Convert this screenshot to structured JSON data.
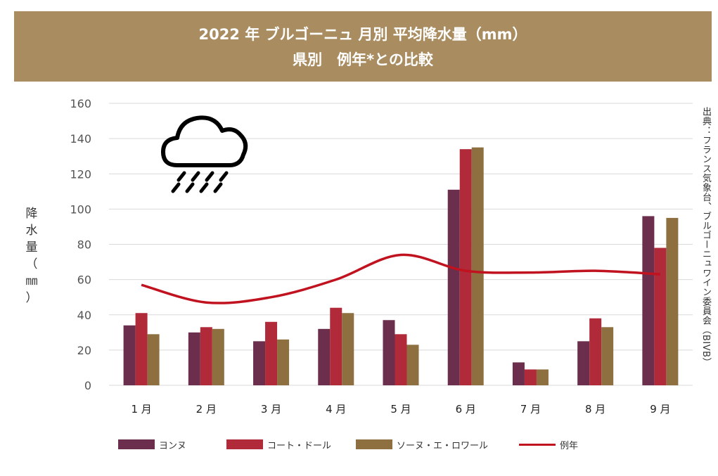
{
  "title": {
    "line1": "2022 年 ブルゴーニュ 月別 平均降水量（mm）",
    "line2": "県別　例年*との比較"
  },
  "ylabel_chars": [
    "降",
    "水",
    "量",
    "（",
    "㎜",
    "）"
  ],
  "source": "出典：フランス気象台、ブルゴーニュワイン委員会（BIVB）",
  "icon": "rain-cloud-icon",
  "colors": {
    "banner": "#a98c5f",
    "yonne": "#6b2e4c",
    "cote_dor": "#b02a3a",
    "saone": "#8e7040",
    "normal": "#c0121f",
    "grid": "#d9d9d9"
  },
  "chart_data": {
    "type": "bar",
    "categories": [
      "1 月",
      "2 月",
      "3 月",
      "4 月",
      "5 月",
      "6 月",
      "7 月",
      "8 月",
      "9 月"
    ],
    "series": [
      {
        "name": "ヨンヌ",
        "type": "bar",
        "values": [
          34,
          30,
          25,
          32,
          37,
          111,
          13,
          25,
          96
        ]
      },
      {
        "name": "コート・ドール",
        "type": "bar",
        "values": [
          41,
          33,
          36,
          44,
          29,
          134,
          9,
          38,
          78
        ]
      },
      {
        "name": "ソーヌ・エ・ロワール",
        "type": "bar",
        "values": [
          29,
          32,
          26,
          41,
          23,
          135,
          9,
          33,
          95
        ]
      },
      {
        "name": "例年",
        "type": "line",
        "values": [
          57,
          47,
          50,
          60,
          74,
          65,
          64,
          65,
          63
        ]
      }
    ],
    "yticks": [
      0,
      20,
      40,
      60,
      80,
      100,
      120,
      140,
      160
    ],
    "ylim": [
      0,
      160
    ],
    "ylabel": "降水量（㎜）",
    "xlabel": "",
    "grid": true,
    "legend": "bottom"
  }
}
